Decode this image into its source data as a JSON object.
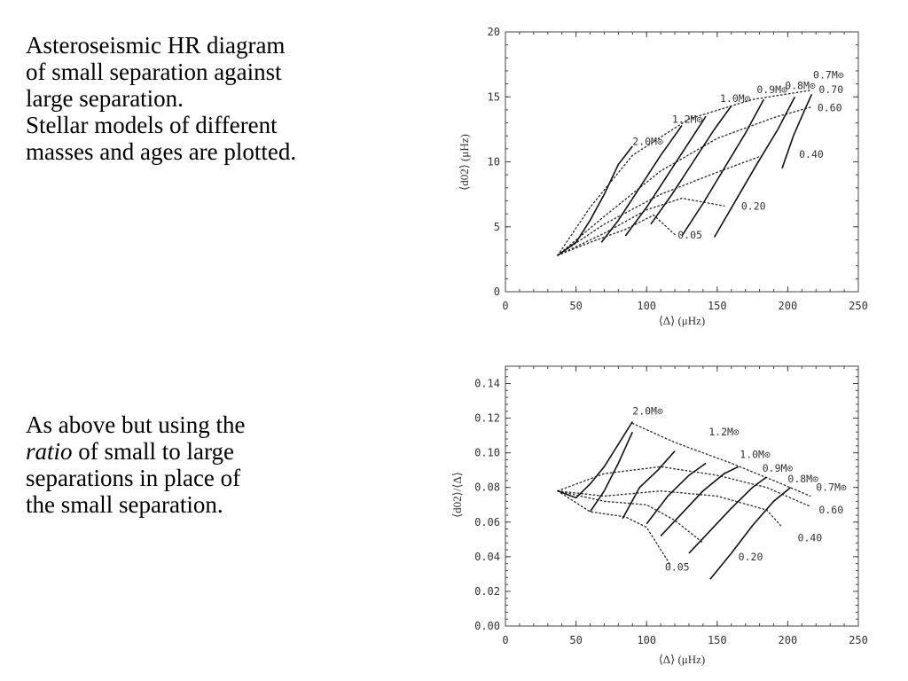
{
  "captions": {
    "top": [
      "Asteroseismic HR diagram",
      "of small separation against",
      "large separation.",
      "Stellar models of different",
      "masses and ages are plotted."
    ],
    "bottom": {
      "line1": "As above but using the",
      "line2_italic": "ratio",
      "line2_rest": " of small to large",
      "line3": "separations in place of",
      "line4": "the small separation."
    }
  },
  "chart_data": [
    {
      "type": "line",
      "xlabel": "⟨Δ⟩ (μHz)",
      "ylabel": "⟨d02⟩ (μHz)",
      "xlim": [
        0,
        250
      ],
      "ylim": [
        0,
        20
      ],
      "xticks": [
        "0",
        "50",
        "100",
        "150",
        "200",
        "250"
      ],
      "yticks": [
        "0",
        "5",
        "10",
        "15",
        "20"
      ],
      "grid": false,
      "mass_tracks": [
        {
          "label": "2.0M⊙",
          "x": [
            37,
            50,
            60,
            70,
            80,
            90
          ],
          "y": [
            2.8,
            3.8,
            5.5,
            7.5,
            9.8,
            11.2
          ]
        },
        {
          "label": "1.2M⊙",
          "x": [
            68,
            80,
            95,
            110,
            125
          ],
          "y": [
            3.8,
            5.5,
            8,
            10.5,
            12.8
          ]
        },
        {
          "label": "1.0M⊙",
          "x": [
            85,
            100,
            115,
            130,
            142
          ],
          "y": [
            4.3,
            6.5,
            9,
            11.5,
            13.5
          ]
        },
        {
          "label": "0.9M⊙",
          "x": [
            103,
            118,
            133,
            148,
            160
          ],
          "y": [
            5.2,
            7.5,
            10,
            12.5,
            14.3
          ]
        },
        {
          "label": "0.8M⊙",
          "x": [
            125,
            140,
            155,
            170,
            183
          ],
          "y": [
            4.3,
            6.8,
            9.5,
            12.2,
            14.8
          ]
        },
        {
          "label": "0.7M⊙",
          "x": [
            148,
            163,
            178,
            193,
            205
          ],
          "y": [
            4.2,
            7,
            9.8,
            12.5,
            15
          ]
        },
        {
          "label": "",
          "x": [
            196,
            204,
            212,
            217
          ],
          "y": [
            9.5,
            12,
            14,
            15.2
          ]
        }
      ],
      "age_isochrones": [
        {
          "label": "0.70",
          "x": [
            37,
            60,
            90,
            130,
            175,
            216
          ],
          "y": [
            2.8,
            6.5,
            10.5,
            13.3,
            14.8,
            15.5
          ]
        },
        {
          "label": "0.60",
          "x": [
            37,
            70,
            110,
            150,
            190,
            216
          ],
          "y": [
            2.8,
            5.8,
            9.3,
            11.8,
            13.4,
            14.2
          ]
        },
        {
          "label": "0.40",
          "x": [
            37,
            70,
            110,
            150,
            180
          ],
          "y": [
            2.8,
            5.2,
            7.5,
            9.2,
            10.4
          ]
        },
        {
          "label": "0.20",
          "x": [
            37,
            70,
            100,
            125,
            155
          ],
          "y": [
            2.8,
            4.5,
            6.3,
            7.2,
            6.6
          ]
        },
        {
          "label": "0.05",
          "x": [
            37,
            60,
            85,
            105,
            120
          ],
          "y": [
            2.8,
            3.8,
            4.8,
            5.9,
            4.4
          ]
        }
      ],
      "annotations": [
        "2.0M⊙",
        "1.2M⊙",
        "1.0M⊙",
        "0.9M⊙",
        "0.8M⊙",
        "0.7M⊙",
        "0.70",
        "0.60",
        "0.40",
        "0.20",
        "0.05"
      ]
    },
    {
      "type": "line",
      "xlabel": "⟨Δ⟩ (μHz)",
      "ylabel": "⟨d02⟩/⟨Δ⟩",
      "xlim": [
        0,
        250
      ],
      "ylim": [
        0,
        0.15
      ],
      "xticks": [
        "0",
        "50",
        "100",
        "150",
        "200",
        "250"
      ],
      "yticks": [
        "0.00",
        "0.02",
        "0.04",
        "0.06",
        "0.08",
        "0.10",
        "0.12",
        "0.14"
      ],
      "grid": false,
      "mass_tracks": [
        {
          "label": "2.0M⊙",
          "x": [
            37,
            50,
            60,
            70,
            80,
            90
          ],
          "y": [
            0.078,
            0.074,
            0.082,
            0.092,
            0.105,
            0.118
          ]
        },
        {
          "label": "1.2M⊙",
          "x": [
            60,
            70,
            80,
            90
          ],
          "y": [
            0.066,
            0.078,
            0.094,
            0.112
          ]
        },
        {
          "label": "1.0M⊙",
          "x": [
            83,
            95,
            108,
            120
          ],
          "y": [
            0.062,
            0.08,
            0.09,
            0.101
          ]
        },
        {
          "label": "0.9M⊙",
          "x": [
            100,
            115,
            130,
            142
          ],
          "y": [
            0.059,
            0.075,
            0.087,
            0.094
          ]
        },
        {
          "label": "0.8M⊙",
          "x": [
            110,
            125,
            140,
            155,
            165
          ],
          "y": [
            0.052,
            0.065,
            0.078,
            0.088,
            0.092
          ]
        },
        {
          "label": "0.7M⊙",
          "x": [
            130,
            145,
            160,
            175,
            185
          ],
          "y": [
            0.042,
            0.055,
            0.068,
            0.08,
            0.086
          ]
        },
        {
          "label": "",
          "x": [
            145,
            160,
            175,
            190,
            202
          ],
          "y": [
            0.027,
            0.042,
            0.058,
            0.072,
            0.08
          ]
        }
      ],
      "age_isochrones": [
        {
          "label": "0.70",
          "x": [
            90,
            120,
            160,
            190,
            216
          ],
          "y": [
            0.117,
            0.106,
            0.094,
            0.084,
            0.075
          ]
        },
        {
          "label": "0.60",
          "x": [
            37,
            70,
            110,
            150,
            185,
            216
          ],
          "y": [
            0.078,
            0.088,
            0.092,
            0.087,
            0.08,
            0.069
          ]
        },
        {
          "label": "0.40",
          "x": [
            37,
            70,
            110,
            150,
            185,
            195
          ],
          "y": [
            0.078,
            0.075,
            0.078,
            0.075,
            0.067,
            0.058
          ]
        },
        {
          "label": "0.20",
          "x": [
            37,
            70,
            100,
            120,
            140
          ],
          "y": [
            0.078,
            0.072,
            0.07,
            0.061,
            0.048
          ]
        },
        {
          "label": "0.05",
          "x": [
            37,
            60,
            85,
            100,
            117
          ],
          "y": [
            0.078,
            0.066,
            0.063,
            0.057,
            0.035
          ]
        }
      ],
      "annotations": [
        "2.0M⊙",
        "1.2M⊙",
        "1.0M⊙",
        "0.9M⊙",
        "0.8M⊙",
        "0.7M⊙",
        "0.60",
        "0.40",
        "0.20",
        "0.05"
      ]
    }
  ]
}
